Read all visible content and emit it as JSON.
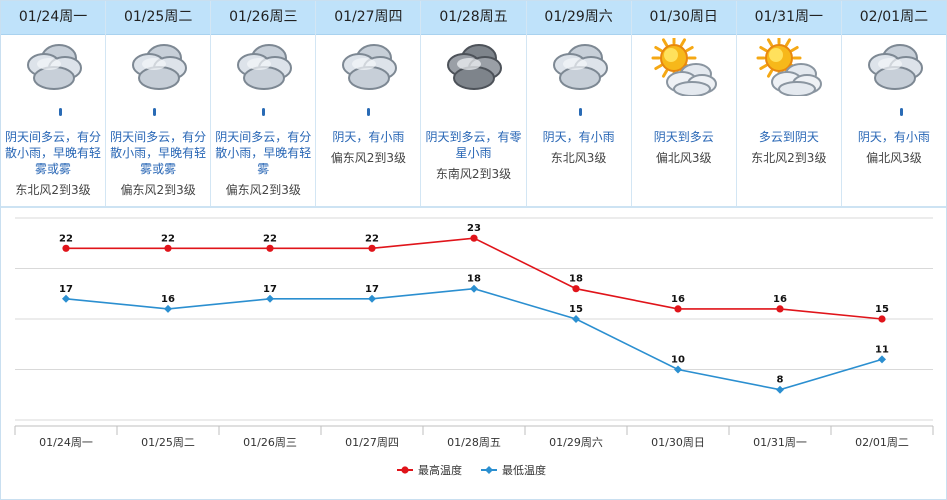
{
  "days": [
    {
      "date": "01/24周一",
      "icon": "cloudy-rain-icon",
      "rain": "light",
      "desc": "阴天间多云，有分散小雨，早晚有轻雾或雾",
      "wind": "东北风2到3级"
    },
    {
      "date": "01/25周二",
      "icon": "cloudy-rain-icon",
      "rain": "light",
      "desc": "阴天间多云，有分散小雨，早晚有轻雾或雾",
      "wind": "偏东风2到3级"
    },
    {
      "date": "01/26周三",
      "icon": "cloudy-rain-icon",
      "rain": "light",
      "desc": "阴天间多云，有分散小雨，早晚有轻雾",
      "wind": "偏东风2到3级"
    },
    {
      "date": "01/27周四",
      "icon": "cloudy-rain-icon",
      "rain": "light",
      "desc": "阴天，有小雨",
      "wind": "偏东风2到3级"
    },
    {
      "date": "01/28周五",
      "icon": "overcast-icon",
      "rain": "none",
      "desc": "阴天到多云，有零星小雨",
      "wind": "东南风2到3级"
    },
    {
      "date": "01/29周六",
      "icon": "cloudy-rain-icon",
      "rain": "light",
      "desc": "阴天，有小雨",
      "wind": "东北风3级"
    },
    {
      "date": "01/30周日",
      "icon": "sun-cloud-icon",
      "rain": "none",
      "desc": "阴天到多云",
      "wind": "偏北风3级"
    },
    {
      "date": "01/31周一",
      "icon": "sun-cloud-icon",
      "rain": "none",
      "desc": "多云到阴天",
      "wind": "东北风2到3级"
    },
    {
      "date": "02/01周二",
      "icon": "cloudy-rain-icon",
      "rain": "light",
      "desc": "阴天，有小雨",
      "wind": "偏北风3级"
    }
  ],
  "colors": {
    "high": "#e0141a",
    "low": "#2b8fd0",
    "header_bg": "#bfe2fa",
    "desc_text": "#2866b5"
  },
  "chart_data": {
    "type": "line",
    "categories": [
      "01/24周一",
      "01/25周二",
      "01/26周三",
      "01/27周四",
      "01/28周五",
      "01/29周六",
      "01/30周日",
      "01/31周一",
      "02/01周二"
    ],
    "series": [
      {
        "name": "最高温度",
        "values": [
          22,
          22,
          22,
          22,
          23,
          18,
          16,
          16,
          15
        ]
      },
      {
        "name": "最低温度",
        "values": [
          17,
          16,
          17,
          17,
          18,
          15,
          10,
          8,
          11
        ]
      }
    ],
    "ylim": [
      5,
      25
    ],
    "grid": true,
    "legend": "bottom-center"
  }
}
